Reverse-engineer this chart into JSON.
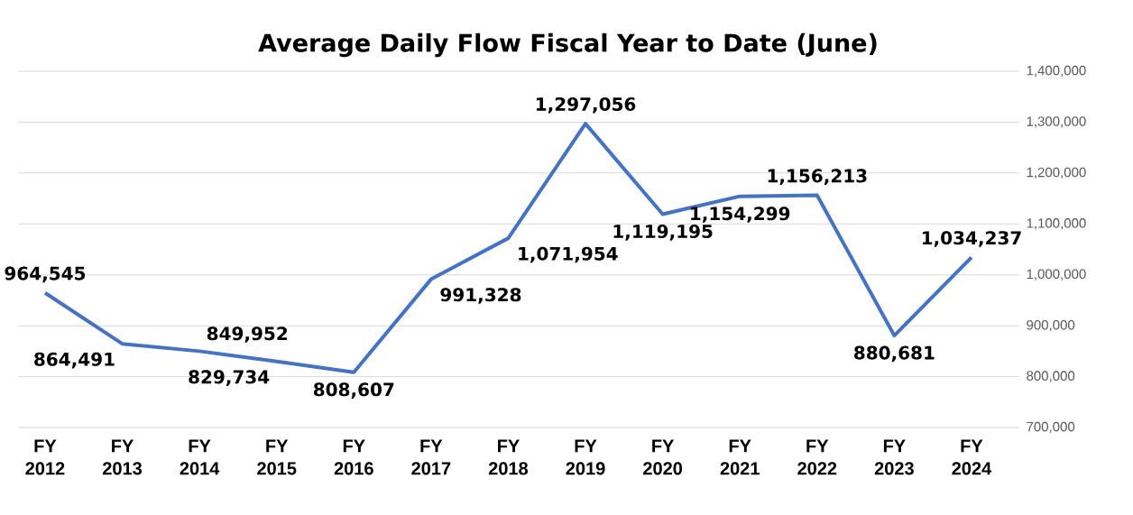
{
  "chart_data": {
    "type": "line",
    "title": "Average Daily Flow Fiscal Year to Date (June)",
    "categories": [
      "FY 2012",
      "FY 2013",
      "FY 2014",
      "FY 2015",
      "FY 2016",
      "FY 2017",
      "FY 2018",
      "FY 2019",
      "FY 2020",
      "FY 2021",
      "FY 2022",
      "FY 2023",
      "FY 2024"
    ],
    "series": [
      {
        "color": "#4472c4",
        "values": [
          964545,
          864491,
          849952,
          829734,
          808607,
          991328,
          1071954,
          1297056,
          1119195,
          1154299,
          1156213,
          880681,
          1034237
        ],
        "value_labels": [
          "964,545",
          "864,491",
          "849,952",
          "829,734",
          "808,607",
          "991,328",
          "1,071,954",
          "1,297,056",
          "1,119,195",
          "1,154,299",
          "1,156,213",
          "880,681",
          "1,034,237"
        ]
      }
    ],
    "ylim": [
      700000,
      1400000
    ],
    "yticks": [
      {
        "value": 700000,
        "label": "700,000"
      },
      {
        "value": 800000,
        "label": "800,000"
      },
      {
        "value": 900000,
        "label": "900,000"
      },
      {
        "value": 1000000,
        "label": "1,000,000"
      },
      {
        "value": 1100000,
        "label": "1,100,000"
      },
      {
        "value": 1200000,
        "label": "1,200,000"
      },
      {
        "value": 1300000,
        "label": "1,300,000"
      },
      {
        "value": 1400000,
        "label": "1,400,000"
      }
    ],
    "grid": "y",
    "marker": "none",
    "line_style": "solid"
  }
}
